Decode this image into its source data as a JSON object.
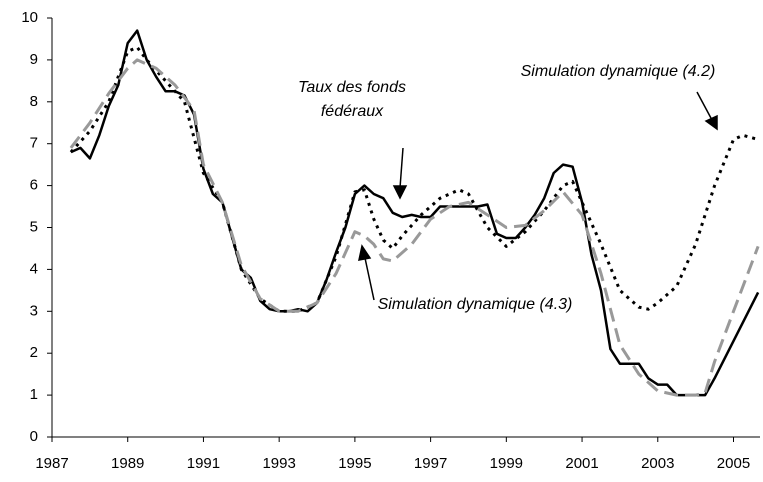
{
  "chart_data": {
    "type": "line",
    "xlim": [
      1987,
      2005.7
    ],
    "xticks": [
      1987,
      1989,
      1991,
      1993,
      1995,
      1997,
      1999,
      2001,
      2003,
      2005
    ],
    "ylim": [
      0,
      10
    ],
    "yticks": [
      0,
      1,
      2,
      3,
      4,
      5,
      6,
      7,
      8,
      9,
      10
    ],
    "grid": false,
    "annotations": [
      {
        "lines": [
          "Taux des fonds",
          "fédéraux"
        ]
      },
      {
        "lines": [
          "Simulation dynamique (4.2)"
        ]
      },
      {
        "lines": [
          "Simulation dynamique (4.3)"
        ]
      }
    ],
    "series": [
      {
        "color": "#000000",
        "style": "solid",
        "x": [
          1987.5,
          1987.75,
          1988,
          1988.25,
          1988.5,
          1988.75,
          1989,
          1989.25,
          1989.5,
          1989.75,
          1990,
          1990.25,
          1990.5,
          1990.75,
          1991,
          1991.25,
          1991.5,
          1991.75,
          1992,
          1992.25,
          1992.5,
          1992.75,
          1993,
          1993.25,
          1993.5,
          1993.75,
          1994,
          1994.25,
          1994.5,
          1994.75,
          1995,
          1995.25,
          1995.5,
          1995.75,
          1996,
          1996.25,
          1996.5,
          1996.75,
          1997,
          1997.25,
          1997.5,
          1997.75,
          1998,
          1998.25,
          1998.5,
          1998.75,
          1999,
          1999.25,
          1999.5,
          1999.75,
          2000,
          2000.25,
          2000.5,
          2000.75,
          2001,
          2001.25,
          2001.5,
          2001.75,
          2002,
          2002.25,
          2002.5,
          2002.75,
          2003,
          2003.25,
          2003.5,
          2003.75,
          2004,
          2004.25,
          2004.5,
          2005.65
        ],
        "values": [
          6.8,
          6.9,
          6.65,
          7.2,
          7.9,
          8.4,
          9.4,
          9.7,
          9.0,
          8.6,
          8.25,
          8.25,
          8.15,
          7.7,
          6.4,
          5.8,
          5.6,
          4.8,
          4.0,
          3.8,
          3.25,
          3.05,
          3.0,
          3.0,
          3.05,
          3.0,
          3.2,
          3.75,
          4.4,
          5.0,
          5.8,
          6.0,
          5.8,
          5.7,
          5.35,
          5.25,
          5.3,
          5.25,
          5.25,
          5.5,
          5.5,
          5.5,
          5.5,
          5.5,
          5.55,
          4.85,
          4.75,
          4.75,
          5.0,
          5.3,
          5.7,
          6.3,
          6.5,
          6.45,
          5.6,
          4.35,
          3.5,
          2.1,
          1.75,
          1.75,
          1.75,
          1.4,
          1.25,
          1.25,
          1.0,
          1.0,
          1.0,
          1.0,
          1.4,
          3.45
        ]
      },
      {
        "color": "#000000",
        "style": "dotted",
        "x": [
          1987.5,
          1988,
          1988.5,
          1989,
          1989.25,
          1989.5,
          1990,
          1990.5,
          1991,
          1991.5,
          1992,
          1992.5,
          1993,
          1993.5,
          1994,
          1994.5,
          1995,
          1995.25,
          1995.5,
          1995.75,
          1996,
          1996.25,
          1996.75,
          1997.25,
          1997.75,
          1998,
          1998.5,
          1999,
          1999.5,
          2000,
          2000.5,
          2000.75,
          2001,
          2001.5,
          2002,
          2002.5,
          2002.75,
          2003,
          2003.5,
          2004,
          2004.5,
          2005,
          2005.25,
          2005.65
        ],
        "values": [
          6.8,
          7.3,
          8.0,
          9.2,
          9.3,
          9.0,
          8.5,
          8.0,
          6.3,
          5.6,
          4.0,
          3.3,
          3.0,
          3.0,
          3.2,
          4.3,
          5.85,
          5.9,
          5.2,
          4.7,
          4.5,
          4.8,
          5.3,
          5.7,
          5.9,
          5.8,
          5.0,
          4.55,
          4.9,
          5.4,
          6.0,
          6.1,
          5.6,
          4.6,
          3.5,
          3.1,
          3.05,
          3.2,
          3.6,
          4.6,
          6.0,
          7.1,
          7.2,
          7.1
        ]
      },
      {
        "color": "#999999",
        "style": "dashed",
        "x": [
          1987.5,
          1988,
          1988.5,
          1989,
          1989.25,
          1989.75,
          1990.25,
          1990.75,
          1991,
          1991.5,
          1992,
          1992.5,
          1993,
          1993.5,
          1994,
          1994.5,
          1995,
          1995.25,
          1995.5,
          1995.75,
          1996,
          1996.5,
          1997,
          1997.5,
          1998,
          1998.5,
          1999,
          1999.5,
          2000,
          2000.5,
          2001,
          2001.5,
          2002,
          2002.5,
          2003,
          2003.5,
          2004,
          2004.25,
          2004.5,
          2005,
          2005.65
        ],
        "values": [
          6.9,
          7.5,
          8.2,
          8.8,
          9.0,
          8.8,
          8.4,
          7.8,
          6.5,
          5.6,
          4.1,
          3.3,
          3.0,
          3.0,
          3.2,
          3.9,
          4.9,
          4.8,
          4.6,
          4.25,
          4.2,
          4.6,
          5.2,
          5.5,
          5.6,
          5.3,
          5.0,
          5.05,
          5.4,
          5.85,
          5.3,
          3.9,
          2.2,
          1.5,
          1.1,
          1.0,
          1.0,
          1.05,
          1.8,
          3.0,
          4.55
        ]
      }
    ]
  }
}
